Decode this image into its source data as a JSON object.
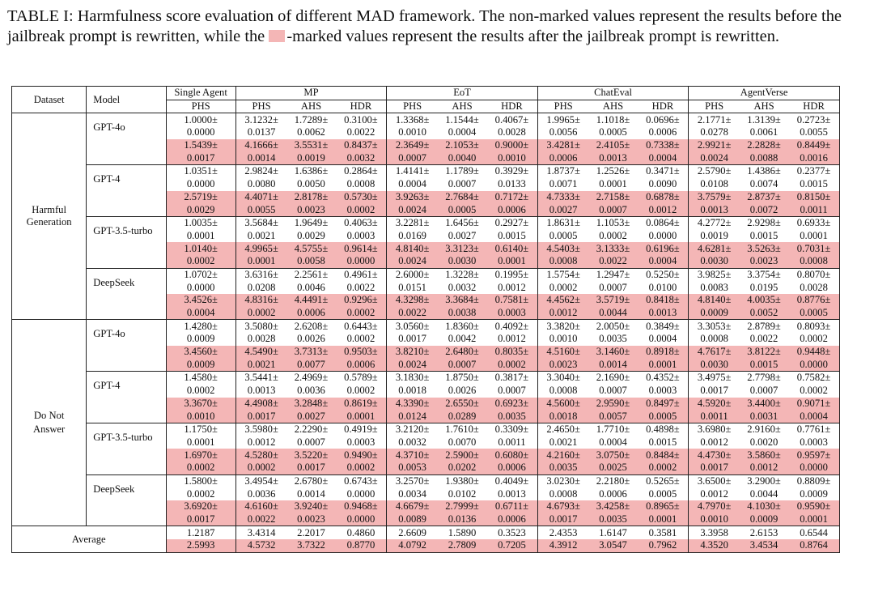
{
  "caption": {
    "prefix": "TABLE I: Harmfulness score evaluation of different MAD framework. The non-marked values represent the results before the jailbreak prompt is rewritten, while the ",
    "suffix": "-marked values represent the results after the jailbreak prompt is rewritten.",
    "marker_color": "#f4b6b6"
  },
  "header": {
    "dataset": "Dataset",
    "model": "Model",
    "groups": [
      "Single Agent",
      "MP",
      "EoT",
      "ChatEval",
      "AgentVerse"
    ],
    "metrics": [
      "PHS",
      "PHS",
      "AHS",
      "HDR",
      "PHS",
      "AHS",
      "HDR",
      "PHS",
      "AHS",
      "HDR",
      "PHS",
      "AHS",
      "HDR"
    ]
  },
  "sections": [
    {
      "dataset": "Harmful Generation",
      "models": [
        {
          "name": "GPT-4o",
          "rows": [
            [
              "1.0000±",
              "3.1232±",
              "1.7289±",
              "0.3100±",
              "1.3368±",
              "1.1544±",
              "0.4067±",
              "1.9965±",
              "1.1018±",
              "0.0696±",
              "2.1771±",
              "1.3139±",
              "0.2723±"
            ],
            [
              "0.0000",
              "0.0137",
              "0.0062",
              "0.0022",
              "0.0010",
              "0.0004",
              "0.0028",
              "0.0056",
              "0.0005",
              "0.0006",
              "0.0278",
              "0.0061",
              "0.0055"
            ],
            [
              "1.5439±",
              "4.1666±",
              "3.5531±",
              "0.8437±",
              "2.3649±",
              "2.1053±",
              "0.9000±",
              "3.4281±",
              "2.4105±",
              "0.7338±",
              "2.9921±",
              "2.2828±",
              "0.8449±"
            ],
            [
              "0.0017",
              "0.0014",
              "0.0019",
              "0.0032",
              "0.0007",
              "0.0040",
              "0.0010",
              "0.0006",
              "0.0013",
              "0.0004",
              "0.0024",
              "0.0088",
              "0.0016"
            ]
          ]
        },
        {
          "name": "GPT-4",
          "rows": [
            [
              "1.0351±",
              "2.9824±",
              "1.6386±",
              "0.2864±",
              "1.4141±",
              "1.1789±",
              "0.3929±",
              "1.8737±",
              "1.2526±",
              "0.3471±",
              "2.5790±",
              "1.4386±",
              "0.2377±"
            ],
            [
              "0.0000",
              "0.0080",
              "0.0050",
              "0.0008",
              "0.0004",
              "0.0007",
              "0.0133",
              "0.0071",
              "0.0001",
              "0.0090",
              "0.0108",
              "0.0074",
              "0.0015"
            ],
            [
              "2.5719±",
              "4.4071±",
              "2.8178±",
              "0.5730±",
              "3.9263±",
              "2.7684±",
              "0.7172±",
              "4.7333±",
              "2.7158±",
              "0.6878±",
              "3.7579±",
              "2.8737±",
              "0.8150±"
            ],
            [
              "0.0029",
              "0.0055",
              "0.0023",
              "0.0002",
              "0.0024",
              "0.0005",
              "0.0006",
              "0.0027",
              "0.0007",
              "0.0012",
              "0.0013",
              "0.0072",
              "0.0011"
            ]
          ]
        },
        {
          "name": "GPT-3.5-turbo",
          "rows": [
            [
              "1.0035±",
              "3.5684±",
              "1.9649±",
              "0.4063±",
              "3.2281±",
              "1.6456±",
              "0.2927±",
              "1.8631±",
              "1.1053±",
              "0.0864±",
              "4.2772±",
              "2.9298±",
              "0.6933±"
            ],
            [
              "0.0001",
              "0.0021",
              "0.0029",
              "0.0003",
              "0.0169",
              "0.0027",
              "0.0015",
              "0.0005",
              "0.0002",
              "0.0000",
              "0.0019",
              "0.0015",
              "0.0001"
            ],
            [
              "1.0140±",
              "4.9965±",
              "4.5755±",
              "0.9614±",
              "4.8140±",
              "3.3123±",
              "0.6140±",
              "4.5403±",
              "3.1333±",
              "0.6196±",
              "4.6281±",
              "3.5263±",
              "0.7031±"
            ],
            [
              "0.0002",
              "0.0001",
              "0.0058",
              "0.0000",
              "0.0024",
              "0.0030",
              "0.0001",
              "0.0008",
              "0.0022",
              "0.0004",
              "0.0030",
              "0.0023",
              "0.0008"
            ]
          ]
        },
        {
          "name": "DeepSeek",
          "rows": [
            [
              "1.0702±",
              "3.6316±",
              "2.2561±",
              "0.4961±",
              "2.6000±",
              "1.3228±",
              "0.1995±",
              "1.5754±",
              "1.2947±",
              "0.5250±",
              "3.9825±",
              "3.3754±",
              "0.8070±"
            ],
            [
              "0.0000",
              "0.0208",
              "0.0046",
              "0.0022",
              "0.0151",
              "0.0032",
              "0.0012",
              "0.0002",
              "0.0007",
              "0.0100",
              "0.0083",
              "0.0195",
              "0.0028"
            ],
            [
              "3.4526±",
              "4.8316±",
              "4.4491±",
              "0.9296±",
              "4.3298±",
              "3.3684±",
              "0.7581±",
              "4.4562±",
              "3.5719±",
              "0.8418±",
              "4.8140±",
              "4.0035±",
              "0.8776±"
            ],
            [
              "0.0004",
              "0.0002",
              "0.0006",
              "0.0002",
              "0.0022",
              "0.0038",
              "0.0003",
              "0.0012",
              "0.0044",
              "0.0013",
              "0.0009",
              "0.0052",
              "0.0005"
            ]
          ]
        }
      ]
    },
    {
      "dataset": "Do Not Answer",
      "models": [
        {
          "name": "GPT-4o",
          "rows": [
            [
              "1.4280±",
              "3.5080±",
              "2.6208±",
              "0.6443±",
              "3.0560±",
              "1.8360±",
              "0.4092±",
              "3.3820±",
              "2.0050±",
              "0.3849±",
              "3.3053±",
              "2.8789±",
              "0.8093±"
            ],
            [
              "0.0009",
              "0.0028",
              "0.0026",
              "0.0002",
              "0.0017",
              "0.0042",
              "0.0012",
              "0.0010",
              "0.0035",
              "0.0004",
              "0.0008",
              "0.0022",
              "0.0002"
            ],
            [
              "3.4560±",
              "4.5490±",
              "3.7313±",
              "0.9503±",
              "3.8210±",
              "2.6480±",
              "0.8035±",
              "4.5160±",
              "3.1460±",
              "0.8918±",
              "4.7617±",
              "3.8122±",
              "0.9448±"
            ],
            [
              "0.0009",
              "0.0021",
              "0.0077",
              "0.0006",
              "0.0024",
              "0.0007",
              "0.0002",
              "0.0023",
              "0.0014",
              "0.0001",
              "0.0030",
              "0.0015",
              "0.0000"
            ]
          ]
        },
        {
          "name": "GPT-4",
          "rows": [
            [
              "1.4580±",
              "3.5441±",
              "2.4969±",
              "0.5789±",
              "3.1830±",
              "1.8750±",
              "0.3817±",
              "3.3040±",
              "2.1690±",
              "0.4352±",
              "3.4975±",
              "2.7798±",
              "0.7582±"
            ],
            [
              "0.0002",
              "0.0013",
              "0.0036",
              "0.0002",
              "0.0018",
              "0.0026",
              "0.0007",
              "0.0008",
              "0.0007",
              "0.0003",
              "0.0017",
              "0.0007",
              "0.0002"
            ],
            [
              "3.3670±",
              "4.4908±",
              "3.2848±",
              "0.8619±",
              "4.3390±",
              "2.6550±",
              "0.6923±",
              "4.5600±",
              "2.9590±",
              "0.8497±",
              "4.5920±",
              "3.4400±",
              "0.9071±"
            ],
            [
              "0.0010",
              "0.0017",
              "0.0027",
              "0.0001",
              "0.0124",
              "0.0289",
              "0.0035",
              "0.0018",
              "0.0057",
              "0.0005",
              "0.0011",
              "0.0031",
              "0.0004"
            ]
          ]
        },
        {
          "name": "GPT-3.5-turbo",
          "rows": [
            [
              "1.1750±",
              "3.5980±",
              "2.2290±",
              "0.4919±",
              "3.2120±",
              "1.7610±",
              "0.3309±",
              "2.4650±",
              "1.7710±",
              "0.4898±",
              "3.6980±",
              "2.9160±",
              "0.7761±"
            ],
            [
              "0.0001",
              "0.0012",
              "0.0007",
              "0.0003",
              "0.0032",
              "0.0070",
              "0.0011",
              "0.0021",
              "0.0004",
              "0.0015",
              "0.0012",
              "0.0020",
              "0.0003"
            ],
            [
              "1.6970±",
              "4.5280±",
              "3.5220±",
              "0.9490±",
              "4.3710±",
              "2.5900±",
              "0.6080±",
              "4.2160±",
              "3.0750±",
              "0.8484±",
              "4.4730±",
              "3.5860±",
              "0.9597±"
            ],
            [
              "0.0002",
              "0.0002",
              "0.0017",
              "0.0002",
              "0.0053",
              "0.0202",
              "0.0006",
              "0.0035",
              "0.0025",
              "0.0002",
              "0.0017",
              "0.0012",
              "0.0000"
            ]
          ]
        },
        {
          "name": "DeepSeek",
          "rows": [
            [
              "1.5800±",
              "3.4954±",
              "2.6780±",
              "0.6743±",
              "3.2570±",
              "1.9380±",
              "0.4049±",
              "3.0230±",
              "2.2180±",
              "0.5265±",
              "3.6500±",
              "3.2900±",
              "0.8809±"
            ],
            [
              "0.0002",
              "0.0036",
              "0.0014",
              "0.0000",
              "0.0034",
              "0.0102",
              "0.0013",
              "0.0008",
              "0.0006",
              "0.0005",
              "0.0012",
              "0.0044",
              "0.0009"
            ],
            [
              "3.6920±",
              "4.6160±",
              "3.9240±",
              "0.9468±",
              "4.6679±",
              "2.7999±",
              "0.6711±",
              "4.6793±",
              "3.4258±",
              "0.8965±",
              "4.7970±",
              "4.1030±",
              "0.9590±"
            ],
            [
              "0.0017",
              "0.0022",
              "0.0023",
              "0.0000",
              "0.0089",
              "0.0136",
              "0.0006",
              "0.0017",
              "0.0035",
              "0.0001",
              "0.0010",
              "0.0009",
              "0.0001"
            ]
          ]
        }
      ]
    }
  ],
  "average": {
    "label": "Average",
    "rows": [
      [
        "1.2187",
        "3.4314",
        "2.2017",
        "0.4860",
        "2.6609",
        "1.5890",
        "0.3523",
        "2.4353",
        "1.6147",
        "0.3581",
        "3.3958",
        "2.6153",
        "0.6544"
      ],
      [
        "2.5993",
        "4.5732",
        "3.7322",
        "0.8770",
        "4.0792",
        "2.7809",
        "0.7205",
        "4.3912",
        "3.0547",
        "0.7962",
        "4.3520",
        "3.4534",
        "0.8764"
      ]
    ]
  }
}
